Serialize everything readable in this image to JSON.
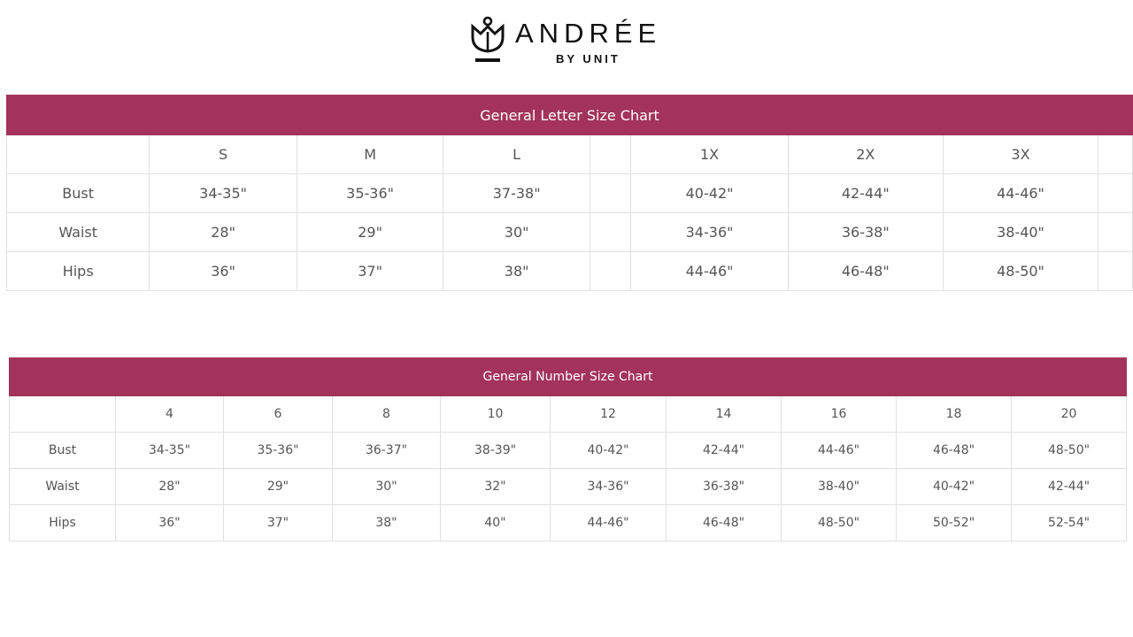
{
  "logo": {
    "brand": "ANDRÉE",
    "sub": "BY UNIT"
  },
  "letter_chart": {
    "title": "General Letter Size Chart",
    "columns": [
      "",
      "S",
      "M",
      "L",
      "",
      "1X",
      "2X",
      "3X",
      ""
    ],
    "rows": [
      [
        "Bust",
        "34-35\"",
        "35-36\"",
        "37-38\"",
        "",
        "40-42\"",
        "42-44\"",
        "44-46\"",
        ""
      ],
      [
        "Waist",
        "28\"",
        "29\"",
        "30\"",
        "",
        "34-36\"",
        "36-38\"",
        "38-40\"",
        ""
      ],
      [
        "Hips",
        "36\"",
        "37\"",
        "38\"",
        "",
        "44-46\"",
        "46-48\"",
        "48-50\"",
        ""
      ]
    ]
  },
  "number_chart": {
    "title": "General Number Size Chart",
    "columns": [
      "",
      "4",
      "6",
      "8",
      "10",
      "12",
      "14",
      "16",
      "18",
      "20"
    ],
    "rows": [
      [
        "Bust",
        "34-35\"",
        "35-36\"",
        "36-37\"",
        "38-39\"",
        "40-42\"",
        "42-44\"",
        "44-46\"",
        "46-48\"",
        "48-50\""
      ],
      [
        "Waist",
        "28\"",
        "29\"",
        "30\"",
        "32\"",
        "34-36\"",
        "36-38\"",
        "38-40\"",
        "40-42\"",
        "42-44\""
      ],
      [
        "Hips",
        "36\"",
        "37\"",
        "38\"",
        "40\"",
        "44-46\"",
        "46-48\"",
        "48-50\"",
        "50-52\"",
        "52-54\""
      ]
    ]
  },
  "colors": {
    "header_band": "#a3335a",
    "grid": "#e1e1e1",
    "text": "#555555"
  }
}
